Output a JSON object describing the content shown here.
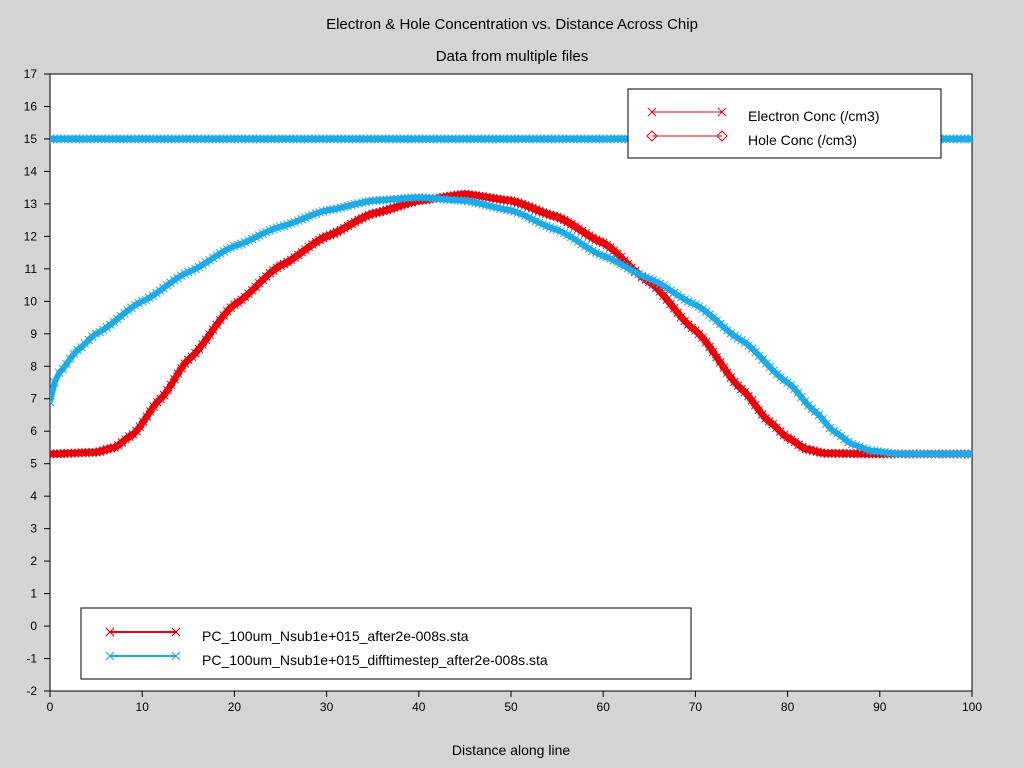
{
  "chart_data": {
    "type": "scatter",
    "title": "Electron & Hole Concentration vs. Distance Across Chip",
    "subtitle": "Data from multiple files",
    "xlabel": "Distance along line",
    "ylabel": "",
    "xlim": [
      0,
      100
    ],
    "ylim": [
      -2,
      17
    ],
    "xticks": [
      "0",
      "10",
      "20",
      "30",
      "40",
      "50",
      "60",
      "70",
      "80",
      "90",
      "100"
    ],
    "yticks": [
      "-2",
      "-1",
      "0",
      "1",
      "2",
      "3",
      "4",
      "5",
      "6",
      "7",
      "8",
      "9",
      "10",
      "11",
      "12",
      "13",
      "14",
      "15",
      "16",
      "17"
    ],
    "grid": false,
    "legend_quantity": {
      "placement": "top-right",
      "entries": [
        {
          "label": "Electron Conc (/cm3)",
          "marker": "x",
          "color": "#e8000b"
        },
        {
          "label": "Hole Conc (/cm3)",
          "marker": "diamond",
          "color": "#e8000b"
        }
      ]
    },
    "legend_files": {
      "placement": "bottom-left",
      "entries": [
        {
          "label": "PC_100um_Nsub1e+015_after2e-008s.sta",
          "marker": "x",
          "color": "#e8000b"
        },
        {
          "label": "PC_100um_Nsub1e+015_difftimestep_after2e-008s.sta",
          "marker": "x",
          "color": "#1eaae6"
        }
      ]
    },
    "series": [
      {
        "file": "PC_100um_Nsub1e+015_after2e-008s.sta",
        "quantity": "Hole Conc (/cm3)",
        "color": "#e8000b",
        "marker": "diamond",
        "x": [
          0,
          5,
          7,
          9,
          12,
          15,
          20,
          25,
          30,
          35,
          40,
          45,
          50,
          55,
          60,
          65,
          70,
          75,
          78,
          80,
          82,
          84,
          90,
          100
        ],
        "y": [
          5.3,
          5.35,
          5.5,
          5.9,
          7.0,
          8.2,
          9.9,
          11.1,
          12.0,
          12.7,
          13.1,
          13.3,
          13.1,
          12.6,
          11.8,
          10.6,
          9.1,
          7.3,
          6.3,
          5.8,
          5.45,
          5.32,
          5.3,
          5.3
        ]
      },
      {
        "file": "PC_100um_Nsub1e+015_after2e-008s.sta",
        "quantity": "Electron Conc (/cm3)",
        "color": "#e8000b",
        "marker": "x",
        "x": [
          0,
          5,
          7,
          9,
          12,
          15,
          20,
          25,
          30,
          35,
          40,
          45,
          50,
          55,
          60,
          65,
          70,
          75,
          78,
          80,
          82,
          84,
          90,
          100
        ],
        "y": [
          5.3,
          5.35,
          5.5,
          5.9,
          7.0,
          8.2,
          9.9,
          11.1,
          12.0,
          12.7,
          13.1,
          13.3,
          13.1,
          12.6,
          11.8,
          10.6,
          9.1,
          7.3,
          6.3,
          5.8,
          5.45,
          5.32,
          5.3,
          5.3
        ]
      },
      {
        "file": "PC_100um_Nsub1e+015_difftimestep_after2e-008s.sta",
        "quantity": "Hole Conc (/cm3)",
        "color": "#1eaae6",
        "marker": "diamond",
        "x": [
          0,
          100
        ],
        "y": [
          15.0,
          15.0
        ]
      },
      {
        "file": "PC_100um_Nsub1e+015_difftimestep_after2e-008s.sta",
        "quantity": "Electron Conc (/cm3)",
        "color": "#1eaae6",
        "marker": "x",
        "x": [
          0,
          0.5,
          1,
          3,
          5,
          10,
          15,
          20,
          25,
          30,
          35,
          40,
          45,
          50,
          55,
          60,
          65,
          70,
          75,
          80,
          83,
          85,
          87,
          89,
          92,
          100
        ],
        "y": [
          6.9,
          7.5,
          7.8,
          8.5,
          9.0,
          10.0,
          10.9,
          11.7,
          12.3,
          12.8,
          13.1,
          13.2,
          13.1,
          12.8,
          12.2,
          11.4,
          10.7,
          9.9,
          8.8,
          7.5,
          6.6,
          6.0,
          5.6,
          5.4,
          5.3,
          5.3
        ]
      }
    ]
  }
}
